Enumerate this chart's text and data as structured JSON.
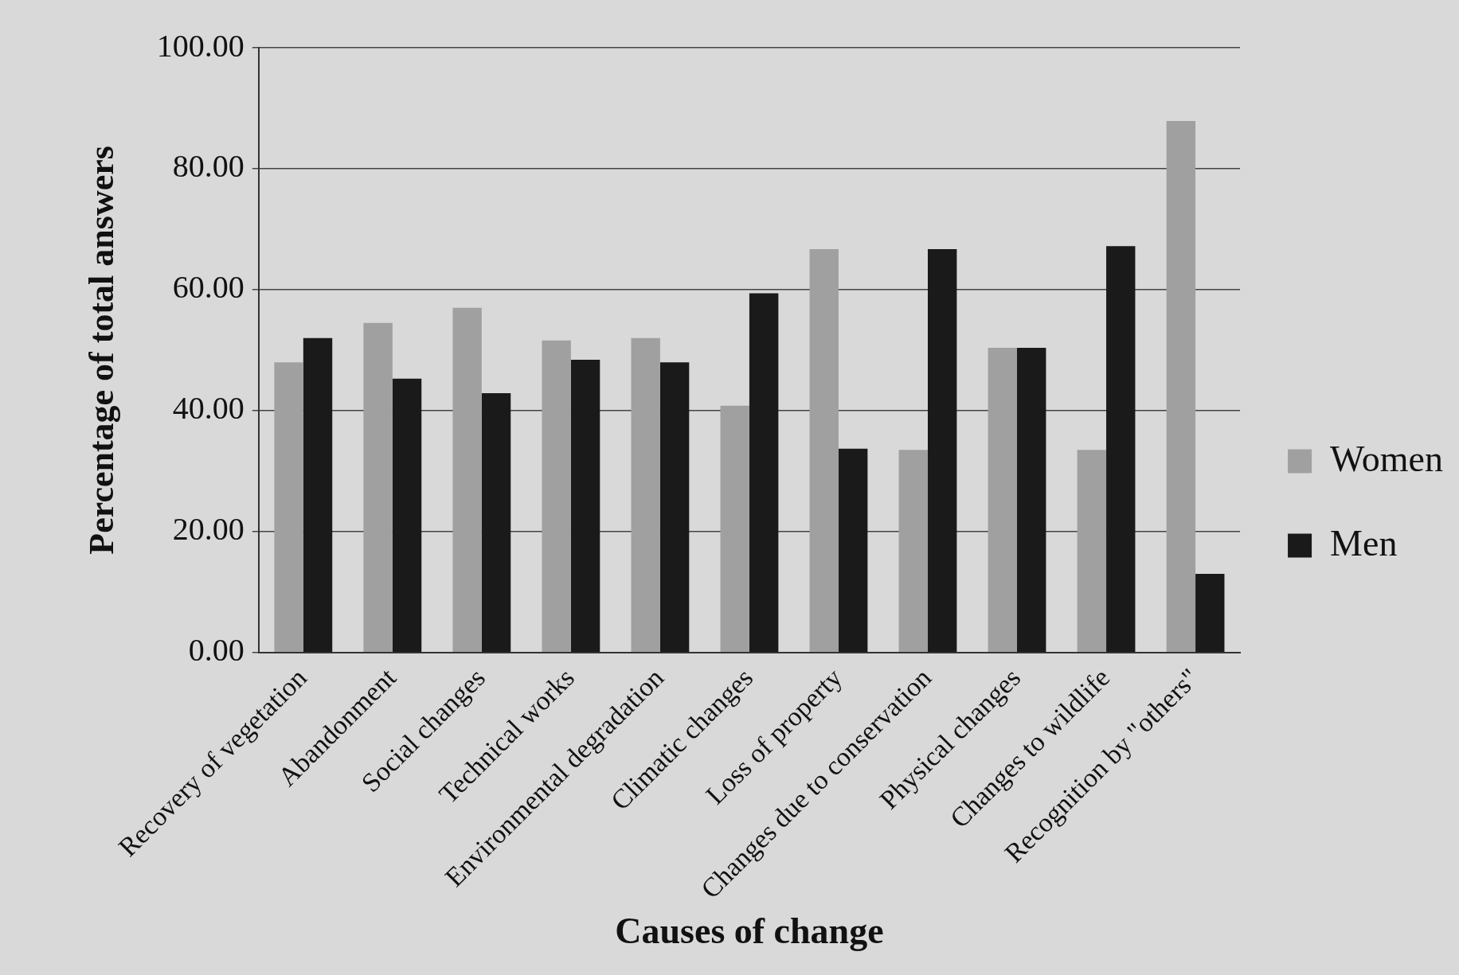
{
  "chart_data": {
    "type": "bar",
    "xlabel": "Causes of change",
    "ylabel": "Percentage of total answers",
    "categories": [
      "Recovery of vegetation",
      "Abandonment",
      "Social changes",
      "Technical works",
      "Environmental degradation",
      "Climatic changes",
      "Loss of property",
      "Changes due to conservation",
      "Physical changes",
      "Changes to wildlife",
      "Recognition by \"others\""
    ],
    "series": [
      {
        "name": "Women",
        "color": "#a0a0a0",
        "values": [
          48.0,
          54.5,
          57.0,
          51.6,
          52.0,
          40.8,
          66.7,
          33.5,
          50.4,
          33.5,
          87.9
        ]
      },
      {
        "name": "Men",
        "color": "#1a1a1a",
        "values": [
          52.0,
          45.3,
          42.9,
          48.4,
          48.0,
          59.4,
          33.7,
          66.7,
          50.4,
          67.2,
          13.0
        ]
      }
    ],
    "ylim": [
      0,
      100
    ],
    "yticks": [
      {
        "value": 0,
        "label": "0.00"
      },
      {
        "value": 20,
        "label": "20.00"
      },
      {
        "value": 40,
        "label": "40.00"
      },
      {
        "value": 60,
        "label": "60.00"
      },
      {
        "value": 80,
        "label": "80.00"
      },
      {
        "value": 100,
        "label": "100.00"
      }
    ],
    "grid": "y",
    "legend": "right"
  }
}
